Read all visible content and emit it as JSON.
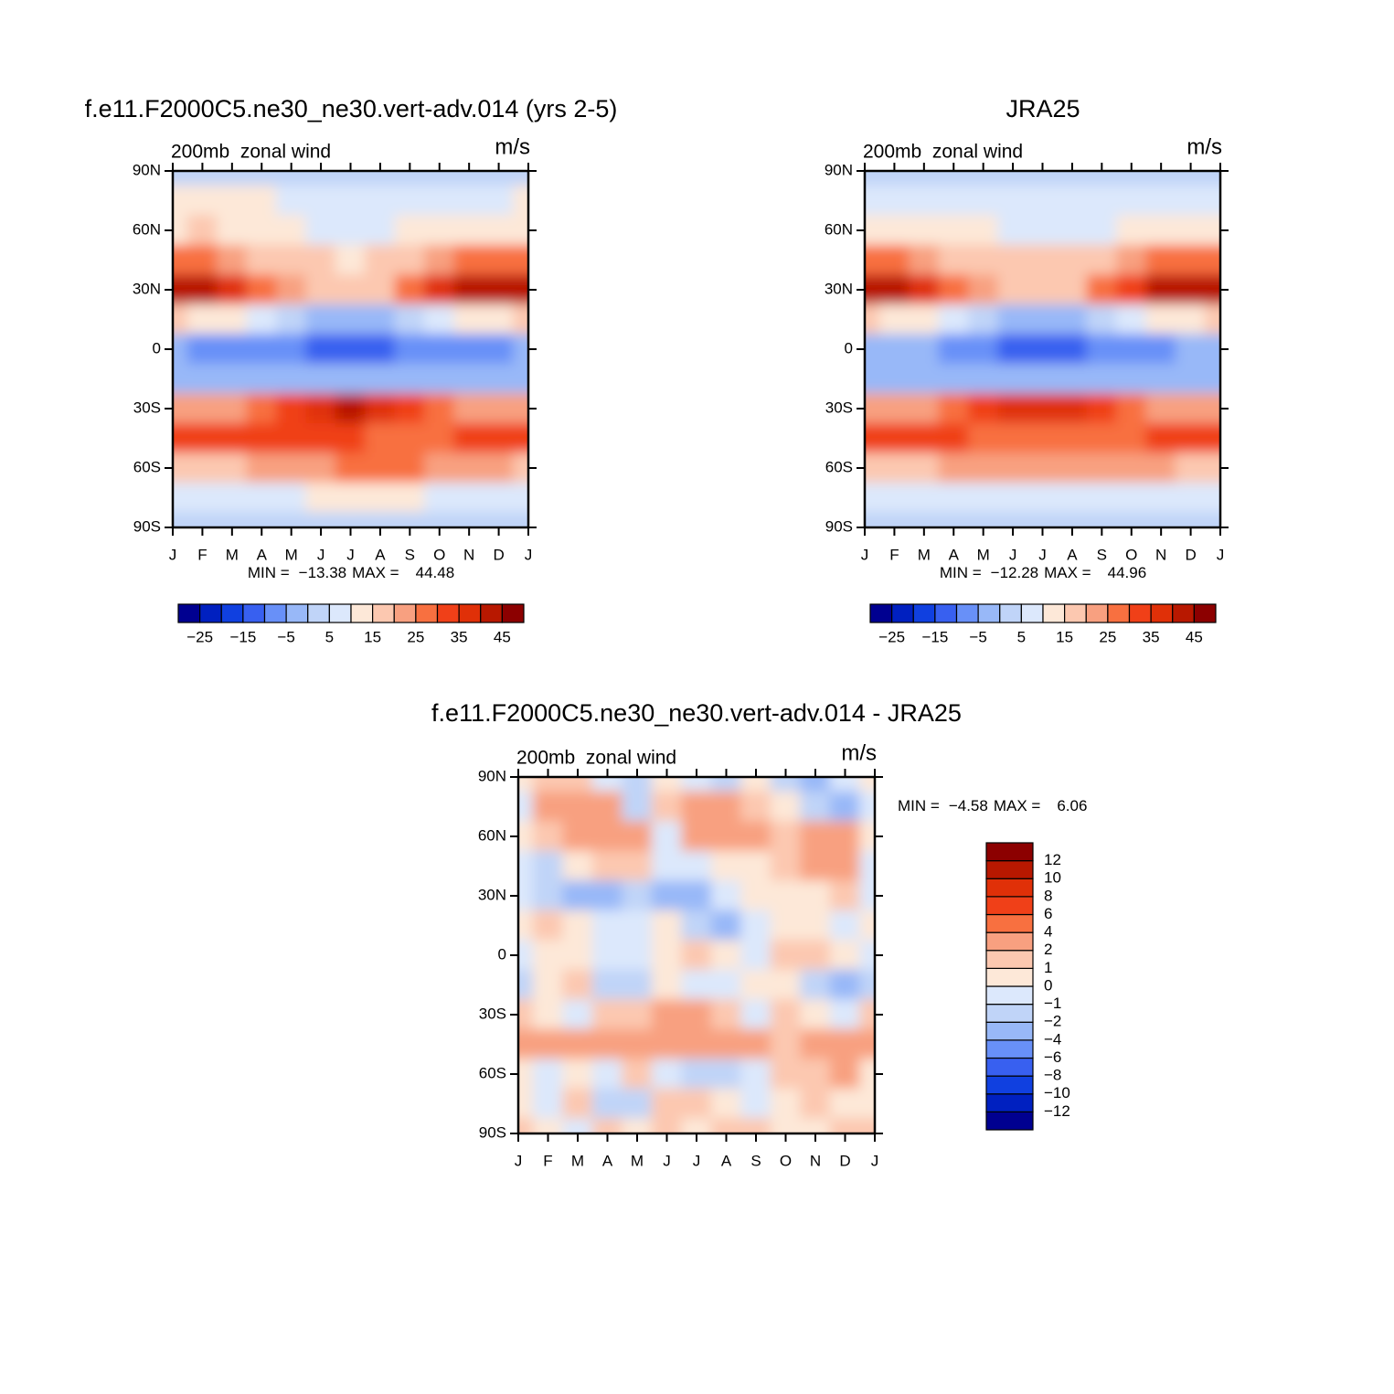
{
  "chart_data": [
    {
      "type": "contour",
      "title": "f.e11.F2000C5.ne30_ne30.vert-adv.014 (yrs 2-5)",
      "left_string": "200mb  zonal wind",
      "right_string": "m/s",
      "categories": [
        "J",
        "F",
        "M",
        "A",
        "M",
        "J",
        "J",
        "A",
        "S",
        "O",
        "N",
        "D",
        "J"
      ],
      "y": [
        90,
        75,
        60,
        45,
        30,
        15,
        0,
        -15,
        -30,
        -45,
        -60,
        -75,
        -90
      ],
      "z": [
        [
          3,
          4,
          4,
          4,
          3,
          3,
          3,
          3,
          3,
          3,
          3,
          3,
          3
        ],
        [
          12,
          13,
          12,
          10,
          6,
          7,
          6,
          7,
          7,
          6,
          6,
          8,
          12
        ],
        [
          14,
          15,
          14,
          12,
          10,
          9,
          8,
          9,
          10,
          12,
          13,
          14,
          14
        ],
        [
          25,
          25,
          22,
          18,
          17,
          15,
          13,
          15,
          18,
          22,
          25,
          26,
          25
        ],
        [
          42,
          40,
          35,
          28,
          22,
          18,
          15,
          18,
          25,
          35,
          40,
          42,
          42
        ],
        [
          15,
          14,
          12,
          8,
          2,
          -2,
          -5,
          -4,
          0,
          5,
          10,
          14,
          15
        ],
        [
          -5,
          -6,
          -6,
          -7,
          -10,
          -12,
          -13,
          -12,
          -10,
          -8,
          -7,
          -6,
          -5
        ],
        [
          -5,
          -5,
          -4,
          -4,
          -3,
          -2,
          -2,
          -2,
          -3,
          -3,
          -4,
          -5,
          -5
        ],
        [
          22,
          22,
          24,
          27,
          32,
          38,
          40,
          38,
          33,
          28,
          24,
          22,
          22
        ],
        [
          34,
          33,
          32,
          32,
          30,
          30,
          30,
          29,
          28,
          29,
          32,
          34,
          34
        ],
        [
          18,
          18,
          18,
          20,
          22,
          24,
          25,
          25,
          25,
          24,
          22,
          20,
          18
        ],
        [
          6,
          5,
          6,
          8,
          9,
          10,
          10,
          10,
          10,
          9,
          8,
          7,
          6
        ],
        [
          0,
          0,
          0,
          1,
          1,
          1,
          1,
          0,
          1,
          1,
          0,
          0,
          0
        ]
      ],
      "ylim": [
        -90,
        90
      ],
      "yticks": [
        {
          "value": 90,
          "label": "90N"
        },
        {
          "value": 60,
          "label": "60N"
        },
        {
          "value": 30,
          "label": "30N"
        },
        {
          "value": 0,
          "label": "0"
        },
        {
          "value": -30,
          "label": "30S"
        },
        {
          "value": -60,
          "label": "60S"
        },
        {
          "value": -90,
          "label": "90S"
        }
      ],
      "min_label": "MIN =",
      "min": -13.38,
      "max_label": "MAX =",
      "max": 44.48,
      "levels": [
        -25,
        -20,
        -15,
        -10,
        -5,
        0,
        5,
        10,
        15,
        20,
        25,
        30,
        35,
        40,
        45
      ],
      "colorbar_ticks": [
        -25,
        -15,
        -5,
        5,
        15,
        25,
        35,
        45
      ],
      "colors": [
        "#000090",
        "#0020c0",
        "#1040e0",
        "#3860f0",
        "#6890f8",
        "#98b8f8",
        "#c0d4f8",
        "#dce8fc",
        "#fde8d8",
        "#fcc8b0",
        "#f8a080",
        "#f87040",
        "#f04018",
        "#e03008",
        "#b81800",
        "#8c0000"
      ]
    },
    {
      "type": "contour",
      "title": "JRA25",
      "left_string": "200mb  zonal wind",
      "right_string": "m/s",
      "categories": [
        "J",
        "F",
        "M",
        "A",
        "M",
        "J",
        "J",
        "A",
        "S",
        "O",
        "N",
        "D",
        "J"
      ],
      "y": [
        90,
        75,
        60,
        45,
        30,
        15,
        0,
        -15,
        -30,
        -45,
        -60,
        -75,
        -90
      ],
      "z": [
        [
          3,
          3,
          3,
          3,
          3,
          3,
          3,
          3,
          3,
          3,
          3,
          3,
          3
        ],
        [
          7,
          7,
          7,
          6,
          6,
          6,
          6,
          6,
          6,
          6,
          7,
          7,
          7
        ],
        [
          13,
          13,
          12,
          11,
          10,
          9,
          8,
          9,
          9,
          11,
          12,
          13,
          13
        ],
        [
          25,
          25,
          22,
          19,
          17,
          16,
          15,
          16,
          18,
          22,
          26,
          26,
          25
        ],
        [
          43,
          42,
          36,
          28,
          22,
          18,
          16,
          18,
          25,
          33,
          40,
          43,
          43
        ],
        [
          15,
          14,
          12,
          8,
          2,
          -3,
          -5,
          -4,
          0,
          5,
          10,
          14,
          15
        ],
        [
          -4,
          -5,
          -5,
          -6,
          -9,
          -11,
          -12,
          -11,
          -9,
          -7,
          -6,
          -5,
          -4
        ],
        [
          -5,
          -5,
          -4,
          -4,
          -3,
          -3,
          -2,
          -2,
          -3,
          -3,
          -4,
          -5,
          -5
        ],
        [
          21,
          21,
          23,
          26,
          30,
          36,
          38,
          36,
          32,
          27,
          23,
          21,
          21
        ],
        [
          33,
          32,
          31,
          30,
          29,
          28,
          28,
          28,
          28,
          29,
          30,
          32,
          33
        ],
        [
          18,
          18,
          19,
          20,
          22,
          24,
          24,
          24,
          24,
          23,
          21,
          19,
          18
        ],
        [
          6,
          6,
          6,
          7,
          8,
          9,
          9,
          9,
          9,
          8,
          7,
          7,
          6
        ],
        [
          1,
          1,
          1,
          1,
          1,
          1,
          1,
          1,
          1,
          1,
          1,
          1,
          1
        ]
      ],
      "ylim": [
        -90,
        90
      ],
      "yticks": [
        {
          "value": 90,
          "label": "90N"
        },
        {
          "value": 60,
          "label": "60N"
        },
        {
          "value": 30,
          "label": "30N"
        },
        {
          "value": 0,
          "label": "0"
        },
        {
          "value": -30,
          "label": "30S"
        },
        {
          "value": -60,
          "label": "60S"
        },
        {
          "value": -90,
          "label": "90S"
        }
      ],
      "min_label": "MIN =",
      "min": -12.28,
      "max_label": "MAX =",
      "max": 44.96,
      "levels": [
        -25,
        -20,
        -15,
        -10,
        -5,
        0,
        5,
        10,
        15,
        20,
        25,
        30,
        35,
        40,
        45
      ],
      "colorbar_ticks": [
        -25,
        -15,
        -5,
        5,
        15,
        25,
        35,
        45
      ],
      "colors": [
        "#000090",
        "#0020c0",
        "#1040e0",
        "#3860f0",
        "#6890f8",
        "#98b8f8",
        "#c0d4f8",
        "#dce8fc",
        "#fde8d8",
        "#fcc8b0",
        "#f8a080",
        "#f87040",
        "#f04018",
        "#e03008",
        "#b81800",
        "#8c0000"
      ]
    },
    {
      "type": "contour",
      "title": "f.e11.F2000C5.ne30_ne30.vert-adv.014 - JRA25",
      "left_string": "200mb  zonal wind",
      "right_string": "m/s",
      "categories": [
        "J",
        "F",
        "M",
        "A",
        "M",
        "J",
        "J",
        "A",
        "S",
        "O",
        "N",
        "D",
        "J"
      ],
      "y": [
        90,
        75,
        60,
        45,
        30,
        15,
        0,
        -15,
        -30,
        -45,
        -60,
        -75,
        -90
      ],
      "z": [
        [
          0,
          1,
          1,
          -1,
          -2,
          0,
          -1,
          -2,
          0,
          -2,
          -3,
          -1,
          0
        ],
        [
          -1,
          2,
          3,
          3,
          -2,
          1,
          3,
          2,
          1,
          0,
          -2,
          -3,
          -1
        ],
        [
          0,
          1,
          2,
          3,
          2,
          -1,
          2,
          3,
          2,
          1,
          2,
          2,
          0
        ],
        [
          -1,
          -2,
          0,
          1,
          1,
          -1,
          -1,
          0,
          0,
          1,
          3,
          2,
          -1
        ],
        [
          -1,
          -2,
          -3,
          -3,
          -2,
          -4,
          -3,
          -1,
          0,
          0,
          0,
          1,
          -1
        ],
        [
          0,
          1,
          0,
          -1,
          -1,
          0,
          -2,
          -3,
          -1,
          0,
          0,
          -1,
          0
        ],
        [
          -1,
          0,
          0,
          -1,
          -1,
          0,
          1,
          0,
          -1,
          1,
          1,
          0,
          -1
        ],
        [
          -2,
          0,
          1,
          -2,
          -2,
          0,
          -1,
          -1,
          0,
          0,
          -2,
          -3,
          -2
        ],
        [
          1,
          0,
          -1,
          1,
          1,
          2,
          2,
          1,
          -1,
          1,
          0,
          -1,
          1
        ],
        [
          2,
          3,
          3,
          2,
          2,
          2,
          3,
          2,
          2,
          1,
          3,
          2,
          2
        ],
        [
          0,
          -1,
          0,
          -1,
          1,
          -1,
          -2,
          -2,
          -1,
          1,
          1,
          2,
          0
        ],
        [
          0,
          -1,
          1,
          -2,
          -2,
          1,
          1,
          0,
          -1,
          0,
          1,
          0,
          0
        ],
        [
          1,
          0,
          -1,
          1,
          0,
          1,
          0,
          1,
          1,
          0,
          0,
          1,
          1
        ]
      ],
      "ylim": [
        -90,
        90
      ],
      "yticks": [
        {
          "value": 90,
          "label": "90N"
        },
        {
          "value": 60,
          "label": "60N"
        },
        {
          "value": 30,
          "label": "30N"
        },
        {
          "value": 0,
          "label": "0"
        },
        {
          "value": -30,
          "label": "30S"
        },
        {
          "value": -60,
          "label": "60S"
        },
        {
          "value": -90,
          "label": "90S"
        }
      ],
      "min_label": "MIN =",
      "min": -4.58,
      "max_label": "MAX =",
      "max": 6.06,
      "levels": [
        -12,
        -10,
        -8,
        -6,
        -4,
        -2,
        -1,
        0,
        1,
        2,
        4,
        6,
        8,
        10,
        12
      ],
      "colorbar_ticks": [
        -12,
        -10,
        -8,
        -6,
        -4,
        -2,
        -1,
        0,
        1,
        2,
        4,
        6,
        8,
        10,
        12
      ],
      "colors": [
        "#000090",
        "#0020c0",
        "#1040e0",
        "#3860f0",
        "#6890f8",
        "#98b8f8",
        "#c0d4f8",
        "#dce8fc",
        "#fde8d8",
        "#fcc8b0",
        "#f8a080",
        "#f87040",
        "#f04018",
        "#e03008",
        "#b81800",
        "#8c0000"
      ]
    }
  ]
}
